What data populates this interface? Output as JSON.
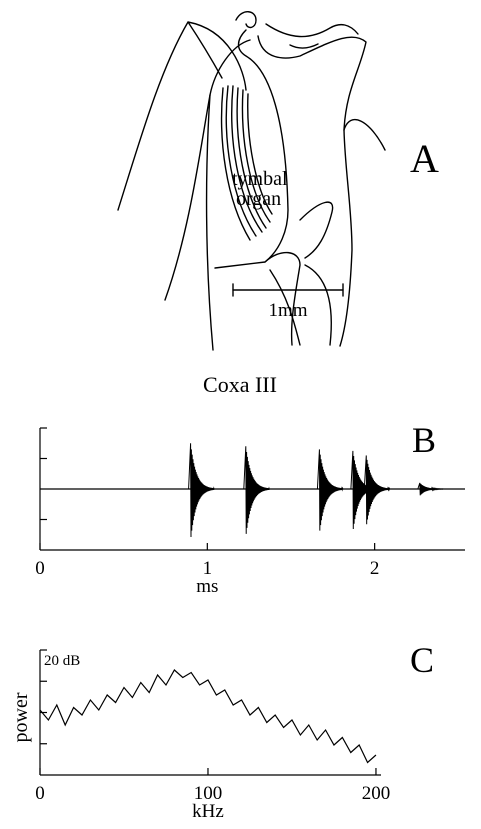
{
  "panel_a": {
    "label": "A",
    "annotations": [
      "tymbal",
      "organ"
    ],
    "scale_bar": "1mm",
    "caption": "Coxa III"
  },
  "chart_data": [
    {
      "type": "burst",
      "panel": "B",
      "x": [
        0.9,
        1.23,
        1.67,
        1.87,
        1.95,
        2.27
      ],
      "values": [
        1.5,
        1.4,
        1.3,
        1.25,
        1.1,
        0.2
      ],
      "xlim": [
        0,
        2.54
      ],
      "xticks": [
        0,
        1,
        2
      ],
      "ylim": [
        -2,
        2
      ],
      "yticks": [
        -1,
        1,
        2
      ],
      "xlabel": "ms",
      "color": "#000000"
    },
    {
      "type": "line",
      "panel": "C",
      "x": [
        0,
        5,
        10,
        15,
        20,
        25,
        30,
        35,
        40,
        45,
        50,
        55,
        60,
        65,
        70,
        75,
        80,
        85,
        90,
        95,
        100,
        105,
        110,
        115,
        120,
        125,
        130,
        135,
        140,
        145,
        150,
        155,
        160,
        165,
        170,
        175,
        180,
        185,
        190,
        195,
        200
      ],
      "values": [
        26,
        22,
        28,
        20,
        27,
        24,
        30,
        26,
        32,
        29,
        35,
        31,
        37,
        33,
        40,
        36,
        42,
        39,
        41,
        36,
        38,
        32,
        34,
        28,
        30,
        24,
        27,
        21,
        24,
        19,
        22,
        16,
        20,
        14,
        18,
        12,
        15,
        9,
        12,
        5,
        8
      ],
      "xlim": [
        0,
        203
      ],
      "xticks": [
        0,
        100,
        200
      ],
      "ylim": [
        0,
        50
      ],
      "yticks": [
        12.5,
        25,
        37.5,
        50
      ],
      "xlabel": "kHz",
      "ylabel": "power",
      "annotation": "20 dB",
      "color": "#000000"
    }
  ]
}
